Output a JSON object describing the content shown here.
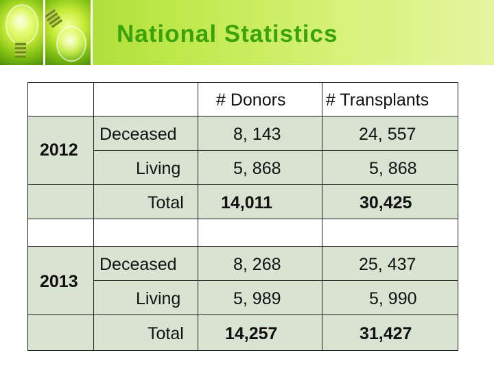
{
  "slide": {
    "title": "National Statistics"
  },
  "table": {
    "headers": {
      "donors": "# Donors",
      "transplants": "# Transplants"
    },
    "years": [
      {
        "year": "2012",
        "rows": [
          {
            "label": "Deceased",
            "donors": "8, 143",
            "transplants": "24, 557"
          },
          {
            "label": "Living",
            "donors": "5, 868",
            "transplants": "5, 868"
          },
          {
            "label": "Total",
            "donors": "14,011",
            "transplants": "30,425"
          }
        ]
      },
      {
        "year": "2013",
        "rows": [
          {
            "label": "Deceased",
            "donors": "8, 268",
            "transplants": "25, 437"
          },
          {
            "label": "Living",
            "donors": "5, 989",
            "transplants": "5, 990"
          },
          {
            "label": "Total",
            "donors": "14,257",
            "transplants": "31,427"
          }
        ]
      }
    ]
  },
  "colors": {
    "title": "#3aa30a",
    "cell_fill": "#d9e3d2",
    "border": "#1c1c1c"
  }
}
